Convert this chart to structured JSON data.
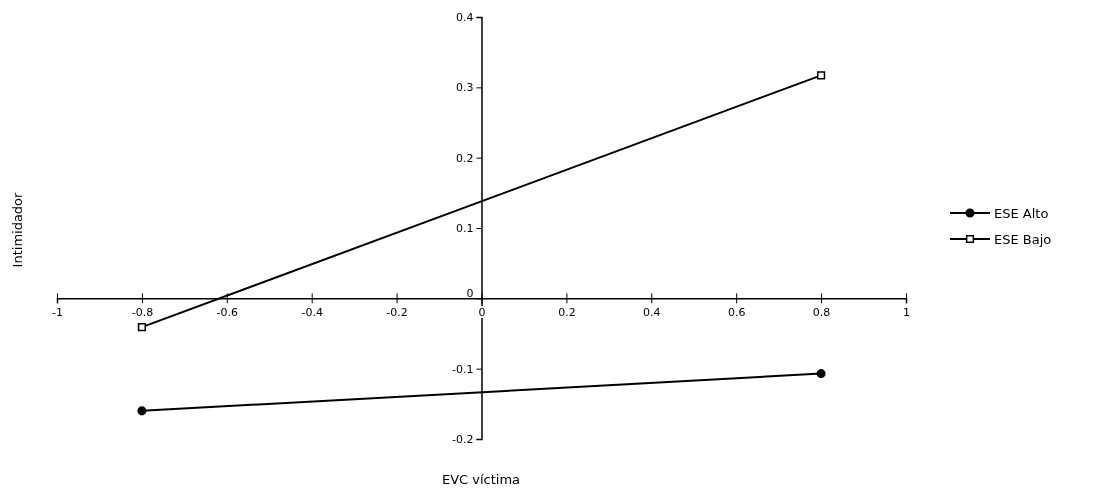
{
  "chart_data": {
    "type": "line",
    "xlabel": "EVC víctima",
    "ylabel": "Intimidador",
    "x": [
      -0.8,
      0.8
    ],
    "series": [
      {
        "name": "ESE Alto",
        "color": "#000000",
        "marker": "circle",
        "values": [
          -0.16,
          -0.107
        ]
      },
      {
        "name": "ESE Bajo",
        "color": "#000000",
        "marker": "square",
        "values": [
          -0.041,
          0.317
        ]
      }
    ],
    "xlim": [
      -1,
      1
    ],
    "xticks": [
      -1,
      -0.8,
      -0.6,
      -0.4,
      -0.2,
      0,
      0.2,
      0.4,
      0.6,
      0.8,
      1
    ],
    "ylim": [
      -0.2,
      0.4
    ],
    "yticks": [
      -0.2,
      -0.1,
      0,
      0.1,
      0.2,
      0.3,
      0.4
    ],
    "grid": false,
    "legend": "right",
    "line_style": "solid"
  }
}
